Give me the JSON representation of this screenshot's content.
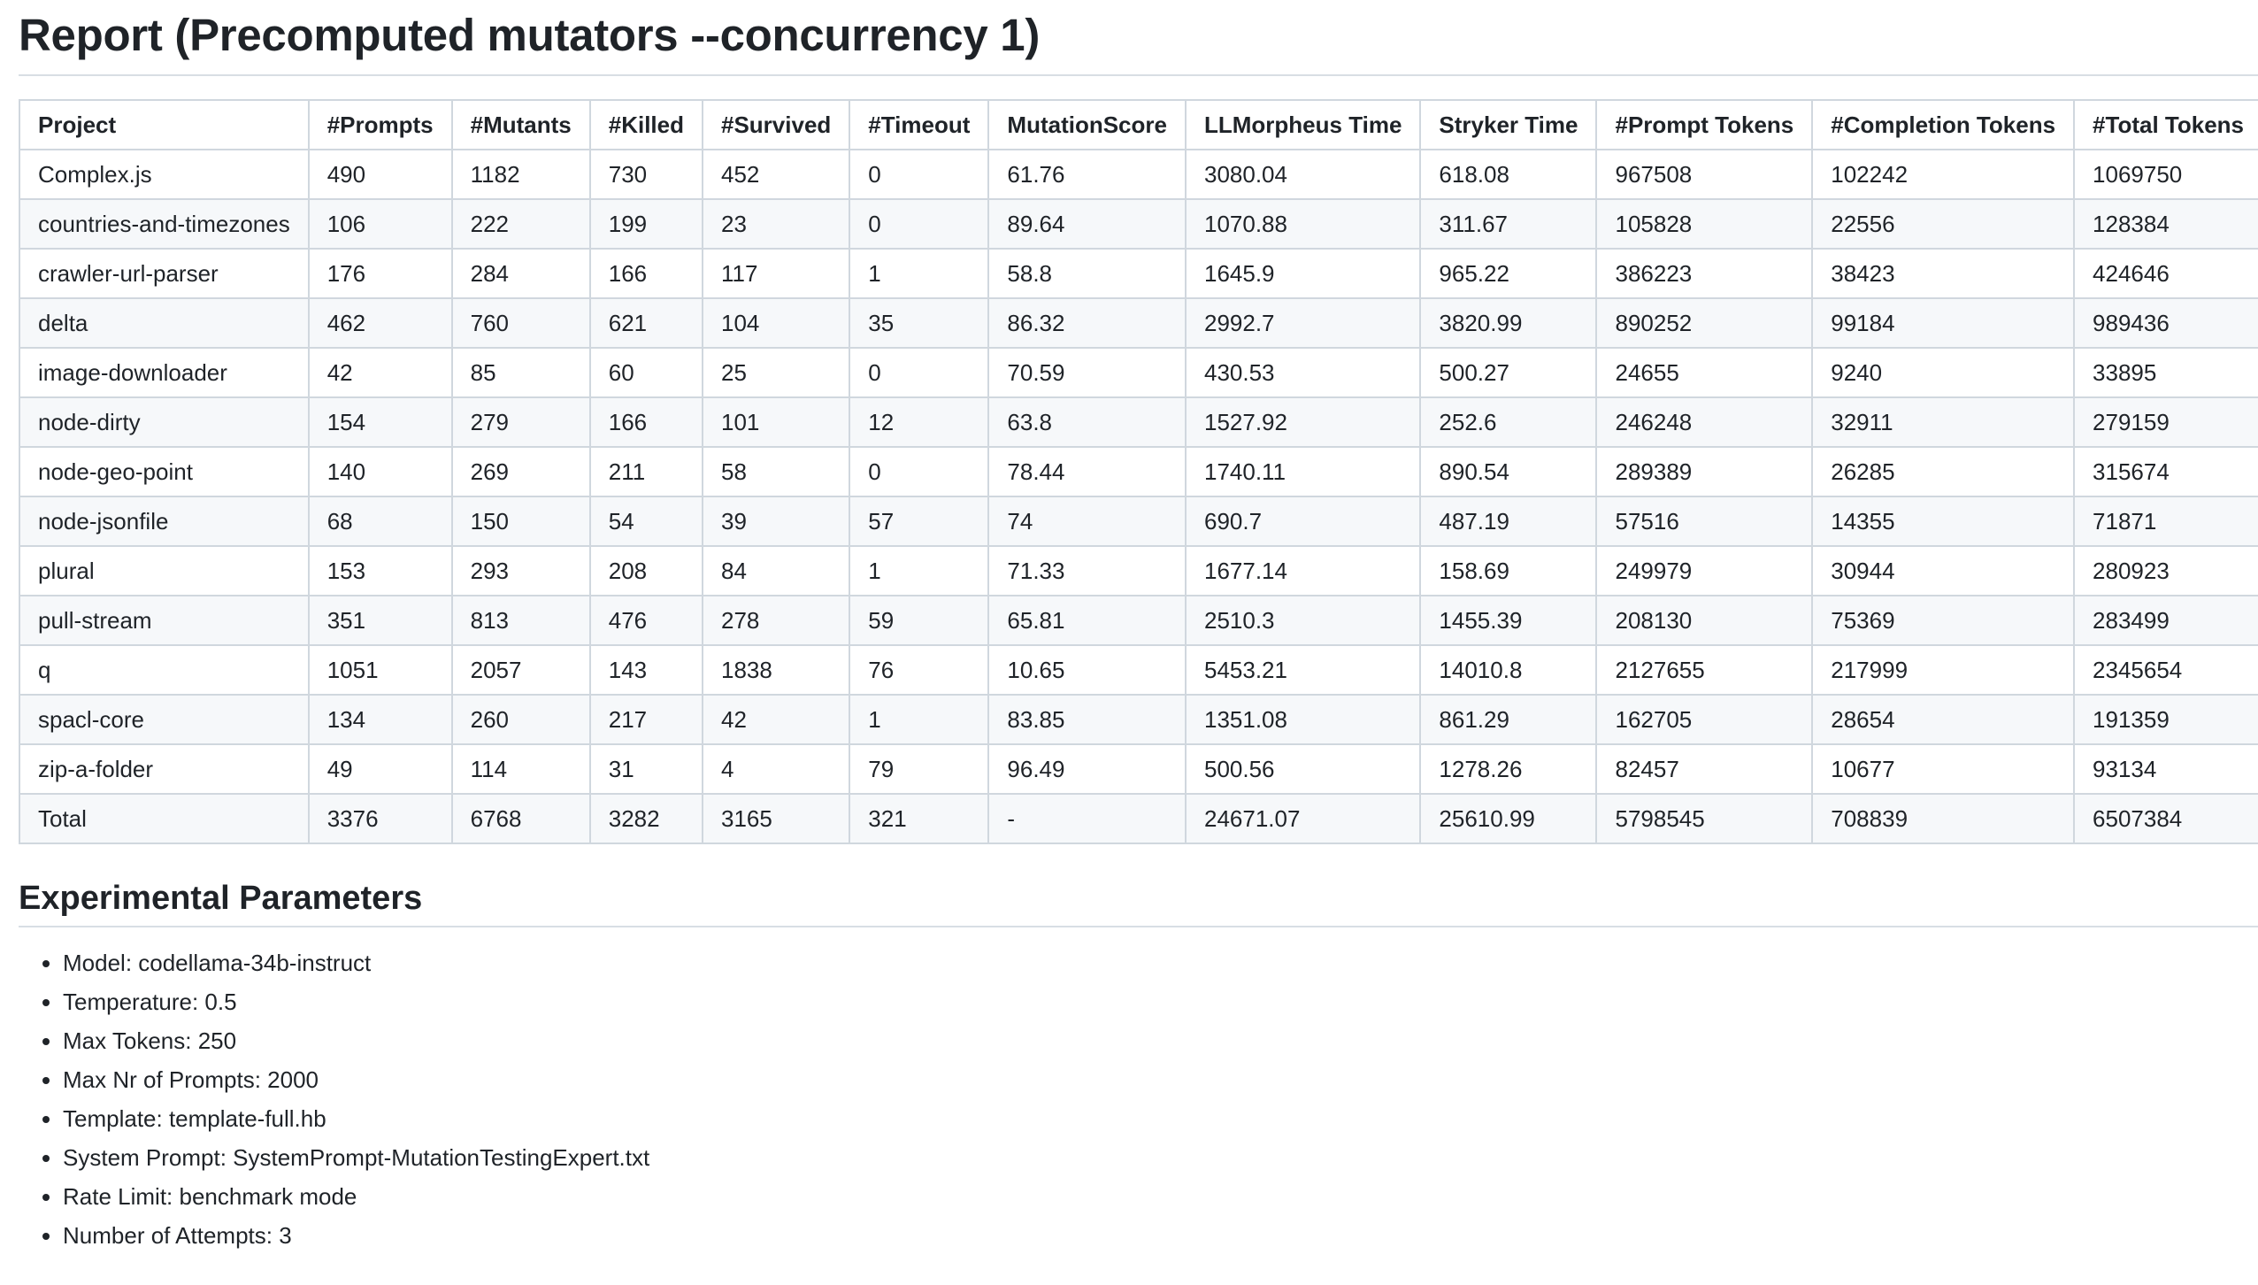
{
  "report": {
    "title": "Report (Precomputed mutators --concurrency 1)",
    "columns": [
      "Project",
      "#Prompts",
      "#Mutants",
      "#Killed",
      "#Survived",
      "#Timeout",
      "MutationScore",
      "LLMorpheus Time",
      "Stryker Time",
      "#Prompt Tokens",
      "#Completion Tokens",
      "#Total Tokens"
    ],
    "rows": [
      [
        "Complex.js",
        "490",
        "1182",
        "730",
        "452",
        "0",
        "61.76",
        "3080.04",
        "618.08",
        "967508",
        "102242",
        "1069750"
      ],
      [
        "countries-and-timezones",
        "106",
        "222",
        "199",
        "23",
        "0",
        "89.64",
        "1070.88",
        "311.67",
        "105828",
        "22556",
        "128384"
      ],
      [
        "crawler-url-parser",
        "176",
        "284",
        "166",
        "117",
        "1",
        "58.8",
        "1645.9",
        "965.22",
        "386223",
        "38423",
        "424646"
      ],
      [
        "delta",
        "462",
        "760",
        "621",
        "104",
        "35",
        "86.32",
        "2992.7",
        "3820.99",
        "890252",
        "99184",
        "989436"
      ],
      [
        "image-downloader",
        "42",
        "85",
        "60",
        "25",
        "0",
        "70.59",
        "430.53",
        "500.27",
        "24655",
        "9240",
        "33895"
      ],
      [
        "node-dirty",
        "154",
        "279",
        "166",
        "101",
        "12",
        "63.8",
        "1527.92",
        "252.6",
        "246248",
        "32911",
        "279159"
      ],
      [
        "node-geo-point",
        "140",
        "269",
        "211",
        "58",
        "0",
        "78.44",
        "1740.11",
        "890.54",
        "289389",
        "26285",
        "315674"
      ],
      [
        "node-jsonfile",
        "68",
        "150",
        "54",
        "39",
        "57",
        "74",
        "690.7",
        "487.19",
        "57516",
        "14355",
        "71871"
      ],
      [
        "plural",
        "153",
        "293",
        "208",
        "84",
        "1",
        "71.33",
        "1677.14",
        "158.69",
        "249979",
        "30944",
        "280923"
      ],
      [
        "pull-stream",
        "351",
        "813",
        "476",
        "278",
        "59",
        "65.81",
        "2510.3",
        "1455.39",
        "208130",
        "75369",
        "283499"
      ],
      [
        "q",
        "1051",
        "2057",
        "143",
        "1838",
        "76",
        "10.65",
        "5453.21",
        "14010.8",
        "2127655",
        "217999",
        "2345654"
      ],
      [
        "spacl-core",
        "134",
        "260",
        "217",
        "42",
        "1",
        "83.85",
        "1351.08",
        "861.29",
        "162705",
        "28654",
        "191359"
      ],
      [
        "zip-a-folder",
        "49",
        "114",
        "31",
        "4",
        "79",
        "96.49",
        "500.56",
        "1278.26",
        "82457",
        "10677",
        "93134"
      ],
      [
        "Total",
        "3376",
        "6768",
        "3282",
        "3165",
        "321",
        "-",
        "24671.07",
        "25610.99",
        "5798545",
        "708839",
        "6507384"
      ]
    ]
  },
  "parameters": {
    "title": "Experimental Parameters",
    "items": [
      "Model: codellama-34b-instruct",
      "Temperature: 0.5",
      "Max Tokens: 250",
      "Max Nr of Prompts: 2000",
      "Template: template-full.hb",
      "System Prompt: SystemPrompt-MutationTestingExpert.txt",
      "Rate Limit: benchmark mode",
      "Number of Attempts: 3"
    ]
  }
}
